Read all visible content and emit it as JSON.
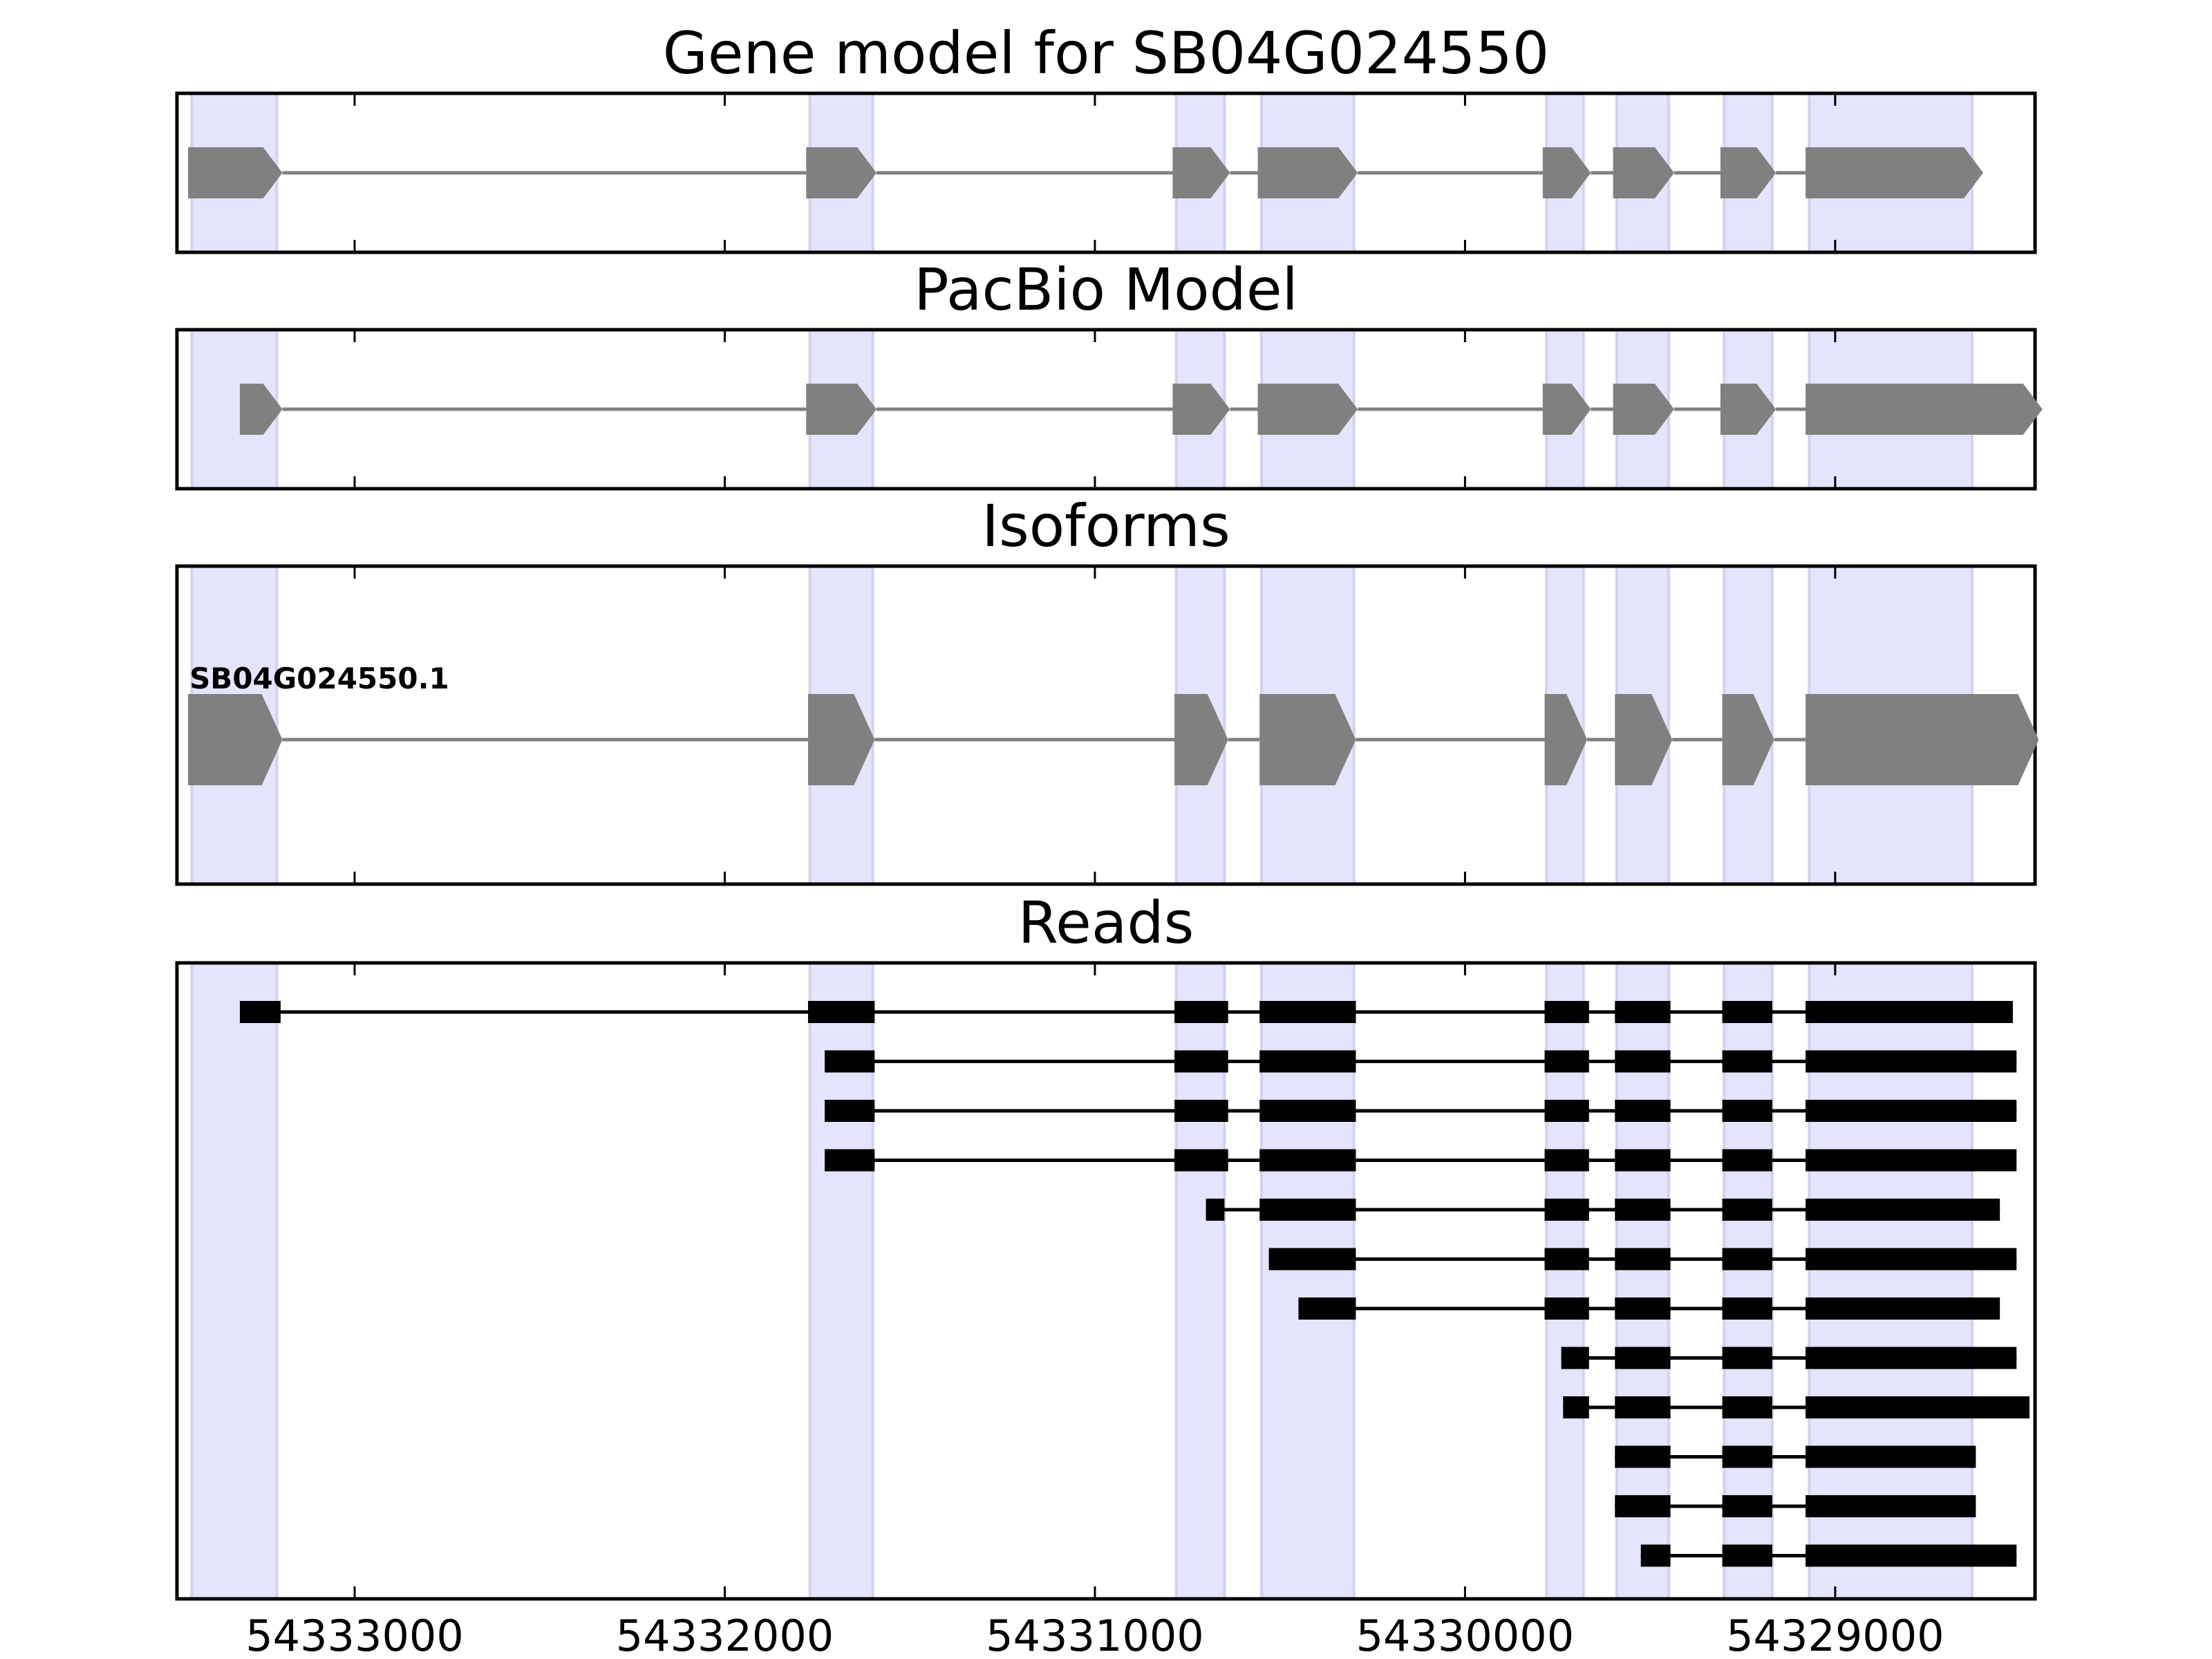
{
  "axis": {
    "x_min_bp": 54333480,
    "x_max_bp": 54328460,
    "direction": "descending",
    "tick_labels": [
      "54333000",
      "54332000",
      "54331000",
      "54330000",
      "54329000"
    ]
  },
  "colors": {
    "exon_band": "#e4e4fc",
    "exon_band_edge": "#d2d2ee",
    "gene_shape": "#808080",
    "intron_line_gene": "#808080",
    "read_block": "#000000",
    "read_line": "#000000",
    "frame": "#000000"
  },
  "exon_bands": [
    [
      54333440,
      54333210
    ],
    [
      54331770,
      54331600
    ],
    [
      54330780,
      54330650
    ],
    [
      54330550,
      54330300
    ],
    [
      54329780,
      54329680
    ],
    [
      54329590,
      54329450
    ],
    [
      54329300,
      54329170
    ],
    [
      54329070,
      54328630
    ]
  ],
  "panels": {
    "gene_model": {
      "title": "Gene model for SB04G024550",
      "exons": [
        [
          54333450,
          54333195
        ],
        [
          54331780,
          54331590
        ],
        [
          54330790,
          54330635
        ],
        [
          54330560,
          54330290
        ],
        [
          54329790,
          54329660
        ],
        [
          54329600,
          54329435
        ],
        [
          54329310,
          54329160
        ],
        [
          54329080,
          54328600
        ]
      ]
    },
    "pacbio_model": {
      "title": "PacBio Model",
      "exons": [
        [
          54333310,
          54333195
        ],
        [
          54331780,
          54331590
        ],
        [
          54330790,
          54330635
        ],
        [
          54330560,
          54330290
        ],
        [
          54329790,
          54329660
        ],
        [
          54329600,
          54329435
        ],
        [
          54329310,
          54329160
        ],
        [
          54329080,
          54328440
        ]
      ]
    },
    "isoforms": {
      "title": "Isoforms",
      "items": [
        {
          "name": "SB04G024550.1",
          "exons": [
            [
              54333450,
              54333195
            ],
            [
              54331775,
              54331595
            ],
            [
              54330785,
              54330640
            ],
            [
              54330555,
              54330295
            ],
            [
              54329785,
              54329670
            ],
            [
              54329595,
              54329440
            ],
            [
              54329305,
              54329165
            ],
            [
              54329080,
              54328450
            ]
          ]
        }
      ]
    },
    "reads": {
      "title": "Reads",
      "items": [
        [
          [
            54333310,
            54333200
          ],
          [
            54331775,
            54331595
          ],
          [
            54330785,
            54330640
          ],
          [
            54330555,
            54330295
          ],
          [
            54329785,
            54329665
          ],
          [
            54329595,
            54329445
          ],
          [
            54329305,
            54329170
          ],
          [
            54329080,
            54328520
          ]
        ],
        [
          [
            54331730,
            54331595
          ],
          [
            54330785,
            54330640
          ],
          [
            54330555,
            54330295
          ],
          [
            54329785,
            54329665
          ],
          [
            54329595,
            54329445
          ],
          [
            54329305,
            54329170
          ],
          [
            54329080,
            54328510
          ]
        ],
        [
          [
            54331730,
            54331595
          ],
          [
            54330785,
            54330640
          ],
          [
            54330555,
            54330295
          ],
          [
            54329785,
            54329665
          ],
          [
            54329595,
            54329445
          ],
          [
            54329305,
            54329170
          ],
          [
            54329080,
            54328510
          ]
        ],
        [
          [
            54331730,
            54331595
          ],
          [
            54330785,
            54330640
          ],
          [
            54330555,
            54330295
          ],
          [
            54329785,
            54329665
          ],
          [
            54329595,
            54329445
          ],
          [
            54329305,
            54329170
          ],
          [
            54329080,
            54328510
          ]
        ],
        [
          [
            54330700,
            54330650
          ],
          [
            54330555,
            54330295
          ],
          [
            54329785,
            54329665
          ],
          [
            54329595,
            54329445
          ],
          [
            54329305,
            54329170
          ],
          [
            54329080,
            54328555
          ]
        ],
        [
          [
            54330530,
            54330295
          ],
          [
            54329785,
            54329665
          ],
          [
            54329595,
            54329445
          ],
          [
            54329305,
            54329170
          ],
          [
            54329080,
            54328510
          ]
        ],
        [
          [
            54330450,
            54330295
          ],
          [
            54329785,
            54329665
          ],
          [
            54329595,
            54329445
          ],
          [
            54329305,
            54329170
          ],
          [
            54329080,
            54328555
          ]
        ],
        [
          [
            54329740,
            54329665
          ],
          [
            54329595,
            54329445
          ],
          [
            54329305,
            54329170
          ],
          [
            54329080,
            54328510
          ]
        ],
        [
          [
            54329735,
            54329665
          ],
          [
            54329595,
            54329445
          ],
          [
            54329305,
            54329170
          ],
          [
            54329080,
            54328475
          ]
        ],
        [
          [
            54329595,
            54329445
          ],
          [
            54329305,
            54329170
          ],
          [
            54329080,
            54328620
          ]
        ],
        [
          [
            54329595,
            54329445
          ],
          [
            54329305,
            54329170
          ],
          [
            54329080,
            54328620
          ]
        ],
        [
          [
            54329525,
            54329445
          ],
          [
            54329305,
            54329170
          ],
          [
            54329080,
            54328510
          ]
        ]
      ]
    }
  }
}
